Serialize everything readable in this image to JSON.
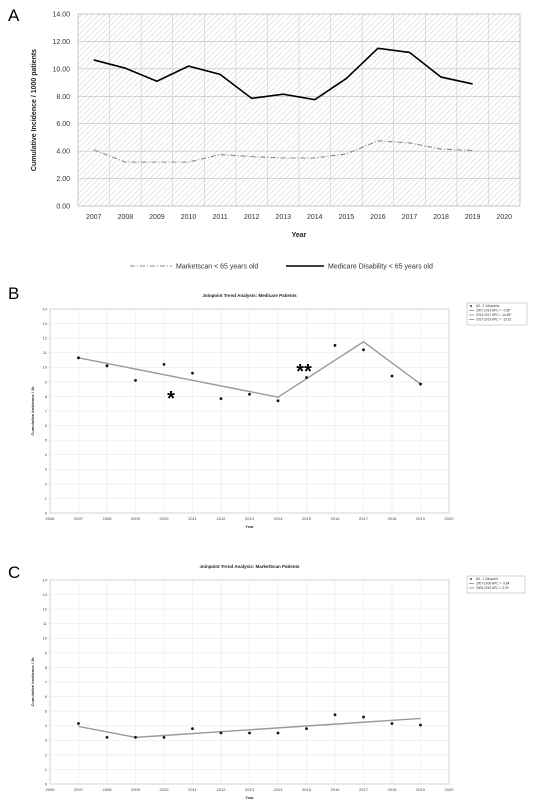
{
  "panels": {
    "a": "A",
    "b": "B",
    "c": "C"
  },
  "chart_data": [
    {
      "type": "line",
      "title": "",
      "xlabel": "Year",
      "ylabel": "Cumulative Incidence / 1000 patients",
      "x": [
        "2007",
        "2008",
        "2009",
        "2010",
        "2011",
        "2012",
        "2013",
        "2014",
        "2015",
        "2016",
        "2017",
        "2018",
        "2019",
        "2020"
      ],
      "y_ticks": [
        "0.00",
        "2.00",
        "4.00",
        "6.00",
        "8.00",
        "10.00",
        "12.00",
        "14.00"
      ],
      "ylim": [
        0,
        14
      ],
      "grid": "hatched background",
      "legend_position": "bottom",
      "series": [
        {
          "name": "Marketscan < 65 years old",
          "style": "dash-dot",
          "color": "#888888",
          "values": [
            4.1,
            3.2,
            3.2,
            3.2,
            3.75,
            3.6,
            3.5,
            3.5,
            3.8,
            4.75,
            4.6,
            4.15,
            4.05,
            null
          ]
        },
        {
          "name": "Medicare Disability < 65 years old",
          "style": "solid",
          "color": "#000000",
          "values": [
            10.65,
            10.05,
            9.1,
            10.2,
            9.6,
            7.85,
            8.15,
            7.75,
            9.3,
            11.5,
            11.2,
            9.4,
            8.9,
            null
          ]
        }
      ]
    },
    {
      "type": "scatter",
      "title": "Joinpoint Trend Analysis: Medicare Patients",
      "xlabel": "Year",
      "ylabel": "Cumulative Incidence / 1k",
      "x_ticks": [
        "2006",
        "2007",
        "2008",
        "2009",
        "2010",
        "2011",
        "2012",
        "2013",
        "2014",
        "2015",
        "2016",
        "2017",
        "2018",
        "2019",
        "2020"
      ],
      "y_ticks": [
        "0",
        "1",
        "2",
        "3",
        "4",
        "5",
        "6",
        "7",
        "8",
        "9",
        "10",
        "11",
        "12",
        "13",
        "14"
      ],
      "xlim": [
        2006,
        2020
      ],
      "ylim": [
        0,
        14
      ],
      "legend_position": "top-right",
      "legend": [
        "All - 2 Joinpoints",
        "2007-2014 APC = -4.05*",
        "2014-2017 APC = 14.65*",
        "2017-2019 APC = -13.62"
      ],
      "points": {
        "x": [
          2007,
          2008,
          2009,
          2010,
          2011,
          2012,
          2013,
          2014,
          2015,
          2016,
          2017,
          2018,
          2019
        ],
        "y": [
          10.65,
          10.1,
          9.1,
          10.2,
          9.6,
          7.85,
          8.15,
          7.7,
          9.3,
          11.5,
          11.2,
          9.4,
          8.85
        ]
      },
      "fit": {
        "x": [
          2007,
          2014,
          2017,
          2019
        ],
        "y": [
          10.65,
          7.95,
          11.75,
          8.85
        ]
      },
      "annotations": [
        "*",
        "**"
      ]
    },
    {
      "type": "scatter",
      "title": "Joinpoint Trend Analysis: MarketScan Patients",
      "xlabel": "Year",
      "ylabel": "Cumulative Incidence / 1k",
      "x_ticks": [
        "2006",
        "2007",
        "2008",
        "2009",
        "2010",
        "2011",
        "2012",
        "2013",
        "2014",
        "2015",
        "2016",
        "2017",
        "2018",
        "2019",
        "2020"
      ],
      "y_ticks": [
        "0",
        "1",
        "2",
        "3",
        "4",
        "5",
        "6",
        "7",
        "8",
        "9",
        "10",
        "11",
        "12",
        "13",
        "14"
      ],
      "xlim": [
        2006,
        2020
      ],
      "ylim": [
        0,
        14
      ],
      "legend_position": "top-right",
      "legend": [
        "All - 1 Joinpoint",
        "2007-2009 APC = -9.84",
        "2009-2019 APC = 3.29"
      ],
      "points": {
        "x": [
          2007,
          2008,
          2009,
          2010,
          2011,
          2012,
          2013,
          2014,
          2015,
          2016,
          2017,
          2018,
          2019
        ],
        "y": [
          4.15,
          3.2,
          3.2,
          3.2,
          3.8,
          3.5,
          3.5,
          3.5,
          3.8,
          4.75,
          4.6,
          4.15,
          4.05
        ]
      },
      "fit": {
        "x": [
          2007,
          2009,
          2019
        ],
        "y": [
          3.95,
          3.2,
          4.5
        ]
      }
    }
  ]
}
